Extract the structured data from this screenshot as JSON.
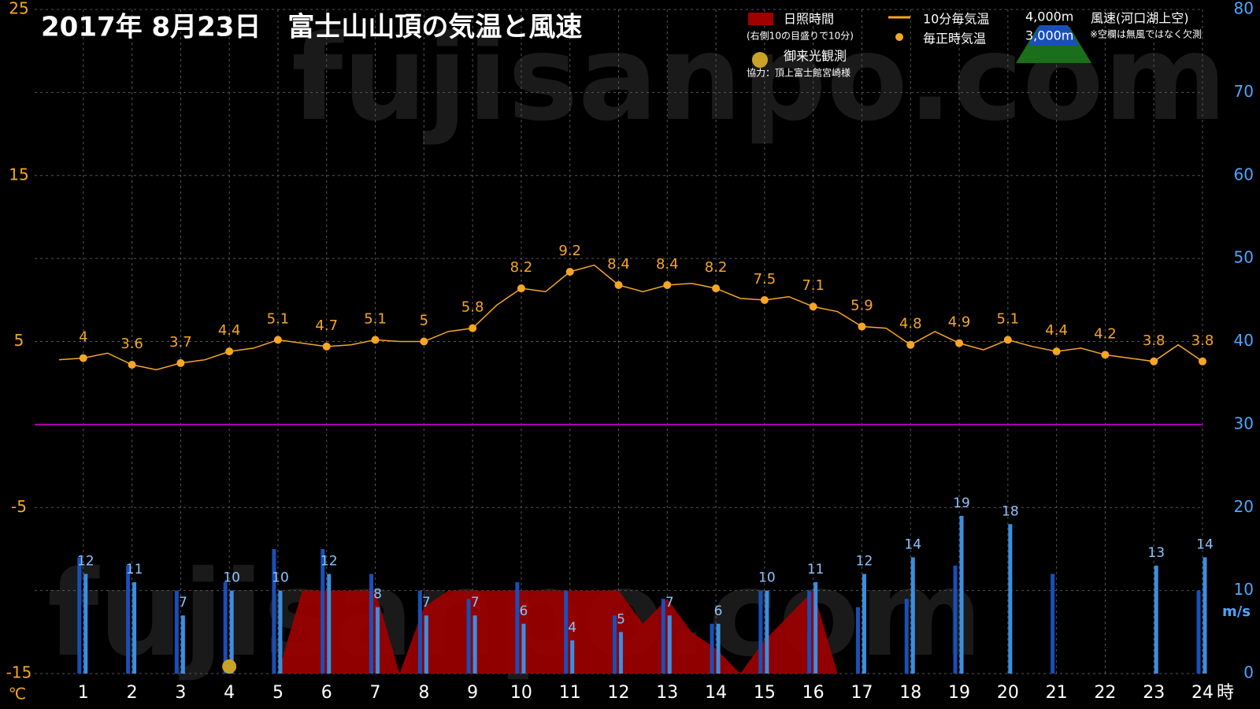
{
  "chart_data": {
    "type": "line",
    "title": "2017年 8月23日　富士山山頂の気温と風速",
    "watermark": "fujisanpo.com",
    "y_label": "℃",
    "y2_label": "m/s",
    "x_label": "時",
    "xlim": [
      0,
      24
    ],
    "xticks": [
      1,
      2,
      3,
      4,
      5,
      6,
      7,
      8,
      9,
      10,
      11,
      12,
      13,
      14,
      15,
      16,
      17,
      18,
      19,
      20,
      21,
      22,
      23,
      24
    ],
    "ylim": [
      -15,
      25
    ],
    "yticks": [
      -15,
      -5,
      5,
      15,
      25
    ],
    "y2lim": [
      0,
      80
    ],
    "y2ticks": [
      0,
      10,
      20,
      30,
      40,
      50,
      60,
      70,
      80
    ],
    "reference_line": 0,
    "grid": true,
    "x": [
      1,
      2,
      3,
      4,
      5,
      6,
      7,
      8,
      9,
      10,
      11,
      12,
      13,
      14,
      15,
      16,
      17,
      18,
      19,
      20,
      21,
      22,
      23,
      24
    ],
    "sunrise": 4,
    "series": [
      {
        "name": "10分毎気温",
        "color": "#f5a623",
        "x": [
          0.5,
          1,
          1.5,
          2,
          2.5,
          3,
          3.5,
          4,
          4.5,
          5,
          5.5,
          6,
          6.5,
          7,
          7.5,
          8,
          8.5,
          9,
          9.5,
          10,
          10.5,
          11,
          11.5,
          12,
          12.5,
          13,
          13.5,
          14,
          14.5,
          15,
          15.5,
          16,
          16.5,
          17,
          17.5,
          18,
          18.5,
          19,
          19.5,
          20,
          20.5,
          21,
          21.5,
          22,
          22.5,
          23,
          23.5,
          24
        ],
        "values": [
          3.9,
          4.0,
          4.3,
          3.6,
          3.3,
          3.7,
          3.9,
          4.4,
          4.6,
          5.1,
          4.9,
          4.7,
          4.8,
          5.1,
          5.0,
          5.0,
          5.6,
          5.8,
          7.2,
          8.2,
          8.0,
          9.2,
          9.6,
          8.4,
          8.0,
          8.4,
          8.5,
          8.2,
          7.6,
          7.5,
          7.7,
          7.1,
          6.8,
          5.9,
          5.8,
          4.8,
          5.6,
          4.9,
          4.5,
          5.1,
          4.7,
          4.4,
          4.6,
          4.2,
          4.0,
          3.8,
          4.8,
          3.8
        ]
      },
      {
        "name": "毎正時気温",
        "color": "#f5a623",
        "values": [
          4,
          3.6,
          3.7,
          4.4,
          5.1,
          4.7,
          5.1,
          5,
          5.8,
          8.2,
          9.2,
          8.4,
          8.4,
          8.2,
          7.5,
          7.1,
          5.9,
          4.8,
          4.9,
          5.1,
          4.4,
          4.2,
          3.8,
          3.8
        ]
      },
      {
        "name": "4,000m",
        "color": "#1a4fb8",
        "axis": "y2",
        "values": [
          14,
          13,
          10,
          11,
          15,
          15,
          12,
          10,
          9,
          11,
          10,
          7,
          9,
          6,
          10,
          10,
          8,
          9,
          13,
          null,
          12,
          null,
          null,
          10
        ]
      },
      {
        "name": "3,000m",
        "color": "#3d8ee0",
        "axis": "y2",
        "values": [
          12,
          11,
          7,
          10,
          10,
          12,
          8,
          7,
          7,
          6,
          4,
          5,
          7,
          6,
          10,
          11,
          12,
          14,
          19,
          18,
          null,
          null,
          13,
          14
        ]
      },
      {
        "name": "日照時間",
        "color": "#a00000",
        "axis": "y2",
        "x": [
          5,
          5.5,
          6,
          6.5,
          7,
          7.5,
          8,
          8.5,
          9,
          9.5,
          10,
          10.5,
          11,
          11.5,
          12,
          12.5,
          13,
          13.5,
          14,
          14.5,
          15,
          15.5,
          16,
          16.5
        ],
        "values": [
          0,
          10,
          10,
          10,
          10,
          0,
          8,
          10,
          10,
          10,
          10,
          10,
          10,
          10,
          10,
          6,
          9,
          5,
          3,
          0,
          4,
          7,
          10,
          0
        ]
      }
    ],
    "legend": {
      "sunshine_note": "(右側10の目盛りで10分)",
      "wind_title": "風速(河口湖上空)",
      "wind_note": "※空欄は無風ではなく欠測",
      "sunrise": "御来光観測",
      "credit": "協力：頂上富士館宮崎様"
    }
  }
}
